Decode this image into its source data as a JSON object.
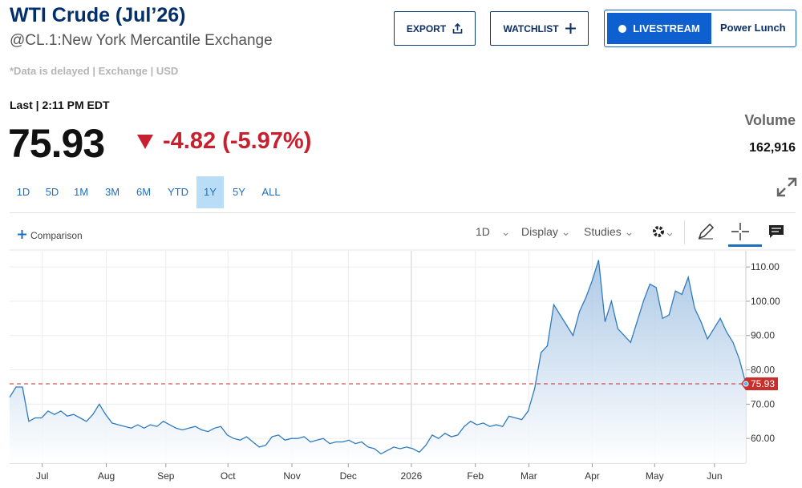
{
  "header": {
    "title": "WTI Crude (Jul’26)",
    "symbol": "@CL.1:New York Mercantile Exchange",
    "note": "*Data is delayed | Exchange | USD"
  },
  "buttons": {
    "export": "EXPORT",
    "watchlist": "WATCHLIST",
    "livestream": "LIVESTREAM",
    "show": "Power Lunch"
  },
  "quote": {
    "last_label": "Last | 2:11 PM EDT",
    "price": "75.93",
    "change": "-4.82 (-5.97%)",
    "volume_label": "Volume",
    "volume": "162,916"
  },
  "ranges": [
    "1D",
    "5D",
    "1M",
    "3M",
    "6M",
    "YTD",
    "1Y",
    "5Y",
    "ALL"
  ],
  "active_range": "1Y",
  "toolbar": {
    "comparison": "Comparison",
    "interval": "1D",
    "display": "Display",
    "studies": "Studies"
  },
  "chart_data": {
    "type": "area",
    "color": "#2f7bbf",
    "last_color": "#c9302c",
    "values": [
      72,
      75,
      75,
      65,
      66,
      66,
      68,
      67,
      68,
      66.5,
      67,
      66,
      65,
      67,
      70,
      67,
      64.5,
      64,
      63.5,
      63,
      64,
      63,
      64,
      63.5,
      65,
      64,
      63,
      62.5,
      63,
      63.5,
      62.5,
      62,
      63,
      63.5,
      61,
      60,
      59.5,
      60.5,
      59,
      57.5,
      58,
      60.5,
      61,
      59.5,
      60,
      60,
      60.5,
      59,
      59.5,
      60,
      58.5,
      59,
      59,
      59.5,
      58.5,
      59,
      57.5,
      57,
      55.5,
      56.5,
      57.5,
      57,
      57.5,
      57,
      56,
      58,
      61,
      60,
      61.5,
      60.5,
      61,
      63.5,
      65,
      64,
      64.5,
      63.5,
      64,
      63.5,
      66.5,
      66,
      65.5,
      68,
      74.5,
      85,
      87,
      99,
      96,
      93,
      90,
      97,
      101,
      106,
      112,
      94,
      100,
      92,
      90,
      88,
      94,
      100,
      105,
      104,
      95,
      96,
      103,
      102,
      107,
      98,
      94,
      89,
      92,
      95,
      91,
      88,
      83,
      75.93
    ],
    "xlim": [
      0,
      115
    ],
    "xticks": [
      {
        "value": 5.1,
        "label": "Jul"
      },
      {
        "value": 15.1,
        "label": "Aug"
      },
      {
        "value": 24.4,
        "label": "Sep"
      },
      {
        "value": 34.1,
        "label": "Oct"
      },
      {
        "value": 44.1,
        "label": "Nov"
      },
      {
        "value": 52.9,
        "label": "Dec"
      },
      {
        "value": 62.75,
        "label": "2026"
      },
      {
        "value": 72.75,
        "label": "Feb"
      },
      {
        "value": 81.1,
        "label": "Mar"
      },
      {
        "value": 91,
        "label": "Apr"
      },
      {
        "value": 100.75,
        "label": "May"
      },
      {
        "value": 110.1,
        "label": "Jun"
      }
    ],
    "ylim": [
      52.8,
      114.7
    ],
    "yticks": [
      {
        "value": 60,
        "label": "60.00"
      },
      {
        "value": 70,
        "label": "70.00"
      },
      {
        "value": 80,
        "label": "80.00"
      },
      {
        "value": 90,
        "label": "90.00"
      },
      {
        "value": 100,
        "label": "100.00"
      },
      {
        "value": 110,
        "label": "110.00"
      }
    ],
    "grid": true
  }
}
